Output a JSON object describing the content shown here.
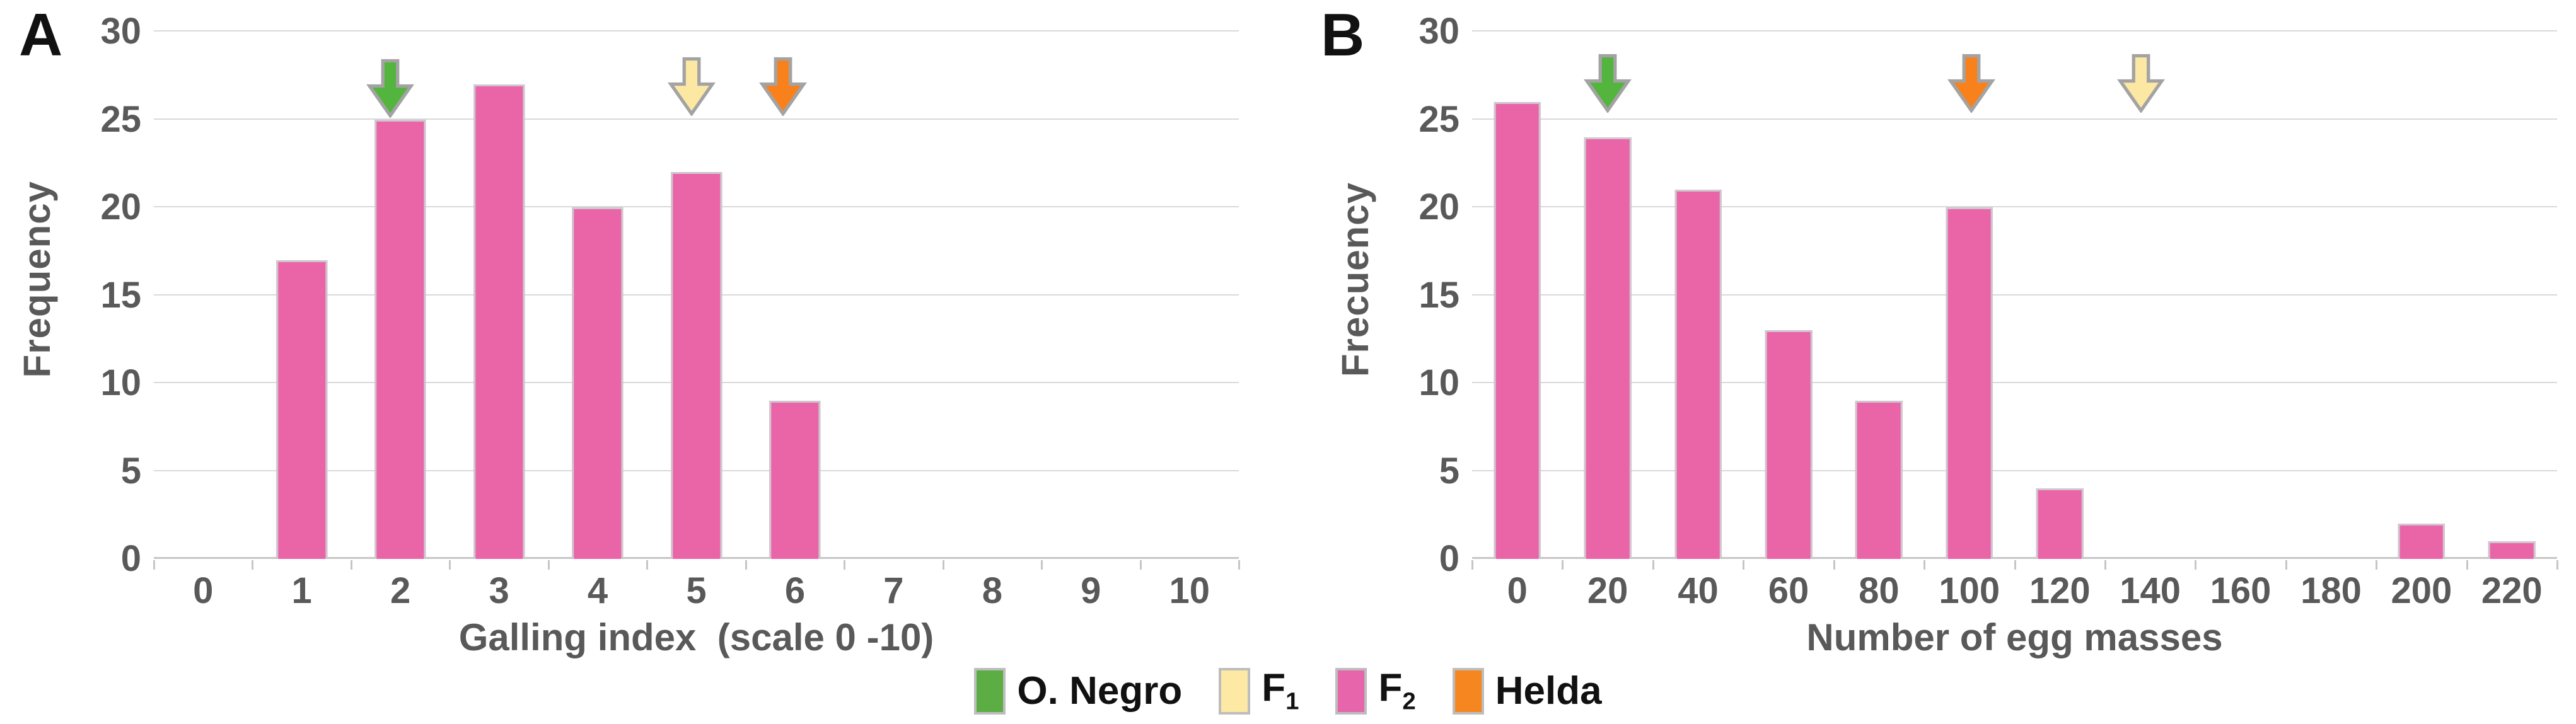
{
  "figure": {
    "background": "#ffffff"
  },
  "colors": {
    "bar_fill": "#ea64a8",
    "bar_border": "#cfc6cf",
    "gridline": "#d9d9d9",
    "axis_line": "#c6c6c6",
    "tick_text": "#595959",
    "arrow_outline": "#a3a3a3",
    "green": "#53b43e",
    "yellow": "#fce8a2",
    "pink": "#e765ab",
    "orange": "#f8811c"
  },
  "legend": {
    "items": [
      {
        "label": "O. Negro",
        "sub": "",
        "color": "#5bad44"
      },
      {
        "label": "F",
        "sub": "1",
        "color": "#fde9a3"
      },
      {
        "label": "F",
        "sub": "2",
        "color": "#e765ab"
      },
      {
        "label": "Helda",
        "sub": "",
        "color": "#f6861f"
      }
    ]
  },
  "chart_data": [
    {
      "panel": "A",
      "type": "bar",
      "title": "",
      "xlabel": "Galling index  (scale 0 -10)",
      "ylabel": "Frequency",
      "categories": [
        "0",
        "1",
        "2",
        "3",
        "4",
        "5",
        "6",
        "7",
        "8",
        "9",
        "10"
      ],
      "values": [
        0,
        17,
        25,
        27,
        20,
        22,
        9,
        0,
        0,
        0,
        0
      ],
      "ylim": [
        0,
        30
      ],
      "ytick_step": 5,
      "grid": true,
      "legend_position": "bottom",
      "bar_color": "#ea64a8",
      "arrows": [
        {
          "name": "o-negro-arrow",
          "genotype": "O. Negro",
          "color": "#53b43e",
          "x": 1.9,
          "tip_y": 25.1
        },
        {
          "name": "f1-arrow",
          "genotype": "F1",
          "color": "#fce8a2",
          "x": 4.95,
          "tip_y": 25.2
        },
        {
          "name": "helda-arrow",
          "genotype": "Helda",
          "color": "#f8811c",
          "x": 5.88,
          "tip_y": 25.2
        }
      ]
    },
    {
      "panel": "B",
      "type": "bar",
      "title": "",
      "xlabel": "Number of egg masses",
      "ylabel": "Frecuency",
      "categories": [
        "0",
        "20",
        "40",
        "60",
        "80",
        "100",
        "120",
        "140",
        "160",
        "180",
        "200",
        "220"
      ],
      "values": [
        26,
        24,
        21,
        13,
        9,
        20,
        4,
        0,
        0,
        0,
        2,
        1
      ],
      "ylim": [
        0,
        30
      ],
      "ytick_step": 5,
      "grid": true,
      "legend_position": "bottom",
      "bar_color": "#ea64a8",
      "arrows": [
        {
          "name": "o-negro-arrow",
          "genotype": "O. Negro",
          "color": "#53b43e",
          "x": 1.0,
          "tip_y": 25.4
        },
        {
          "name": "helda-arrow",
          "genotype": "Helda",
          "color": "#f8811c",
          "x": 5.02,
          "tip_y": 25.4
        },
        {
          "name": "f1-arrow",
          "genotype": "F1",
          "color": "#fce8a2",
          "x": 6.9,
          "tip_y": 25.4
        }
      ]
    }
  ]
}
